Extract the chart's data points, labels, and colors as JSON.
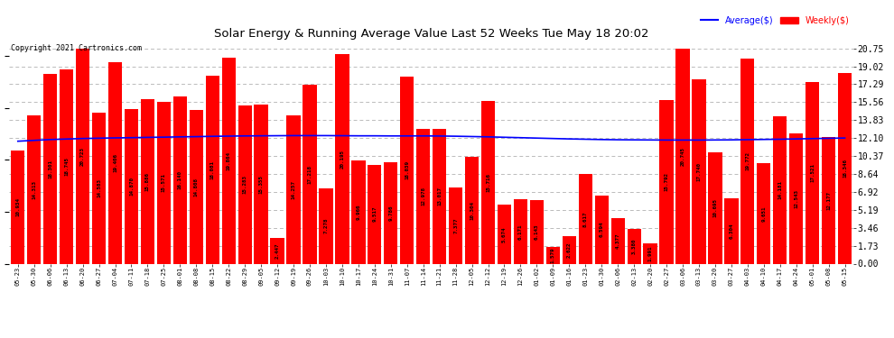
{
  "title": "Solar Energy & Running Average Value Last 52 Weeks Tue May 18 20:02",
  "copyright": "Copyright 2021 Cartronics.com",
  "bar_color": "#FF0000",
  "avg_line_color": "#0000FF",
  "background_color": "#FFFFFF",
  "grid_color": "#AAAAAA",
  "ylabel_right": [
    "20.75",
    "19.02",
    "17.29",
    "15.56",
    "13.83",
    "12.10",
    "10.37",
    "8.64",
    "6.92",
    "5.19",
    "3.46",
    "1.73",
    "0.00"
  ],
  "yticks_right": [
    20.75,
    19.02,
    17.29,
    15.56,
    13.83,
    12.1,
    10.37,
    8.64,
    6.92,
    5.19,
    3.46,
    1.73,
    0.0
  ],
  "ylim": [
    0,
    21.5
  ],
  "categories": [
    "05-23",
    "05-30",
    "06-06",
    "06-13",
    "06-20",
    "06-27",
    "07-04",
    "07-11",
    "07-18",
    "07-25",
    "08-01",
    "08-08",
    "08-15",
    "08-22",
    "08-29",
    "09-05",
    "09-12",
    "09-19",
    "09-26",
    "10-03",
    "10-10",
    "10-17",
    "10-24",
    "10-31",
    "11-07",
    "11-14",
    "11-21",
    "11-28",
    "12-05",
    "12-12",
    "12-19",
    "12-26",
    "01-02",
    "01-09",
    "01-16",
    "01-23",
    "01-30",
    "02-06",
    "02-13",
    "02-20",
    "02-27",
    "03-06",
    "03-13",
    "03-20",
    "03-27",
    "04-03",
    "04-10",
    "04-17",
    "04-24",
    "05-01",
    "05-08",
    "05-15"
  ],
  "values": [
    10.934,
    14.313,
    18.301,
    18.745,
    20.723,
    14.583,
    19.406,
    14.87,
    15.886,
    15.571,
    16.14,
    14.808,
    18.081,
    19.864,
    15.283,
    15.355,
    2.447,
    14.257,
    17.218,
    7.278,
    20.195,
    9.966,
    9.517,
    9.786,
    18.039,
    12.978,
    13.017,
    7.377,
    10.304,
    15.716,
    5.674,
    6.171,
    6.143,
    1.579,
    2.622,
    8.617,
    6.594,
    4.377,
    3.38,
    1.991,
    15.792,
    20.745,
    17.74,
    10.695,
    6.304,
    19.772,
    9.651,
    14.181,
    12.543,
    17.521,
    12.177,
    18.346
  ],
  "avg_values": [
    11.8,
    11.88,
    11.96,
    12.01,
    12.06,
    12.09,
    12.12,
    12.14,
    12.17,
    12.19,
    12.22,
    12.24,
    12.27,
    12.29,
    12.31,
    12.32,
    12.33,
    12.34,
    12.34,
    12.34,
    12.33,
    12.32,
    12.32,
    12.31,
    12.31,
    12.31,
    12.3,
    12.28,
    12.25,
    12.22,
    12.18,
    12.14,
    12.1,
    12.06,
    12.02,
    11.99,
    11.96,
    11.94,
    11.93,
    11.92,
    11.91,
    11.91,
    11.91,
    11.92,
    11.93,
    11.95,
    11.97,
    11.99,
    12.02,
    12.05,
    12.08,
    12.11
  ],
  "legend_avg_label": "Average($)",
  "legend_weekly_label": "Weekly($)"
}
